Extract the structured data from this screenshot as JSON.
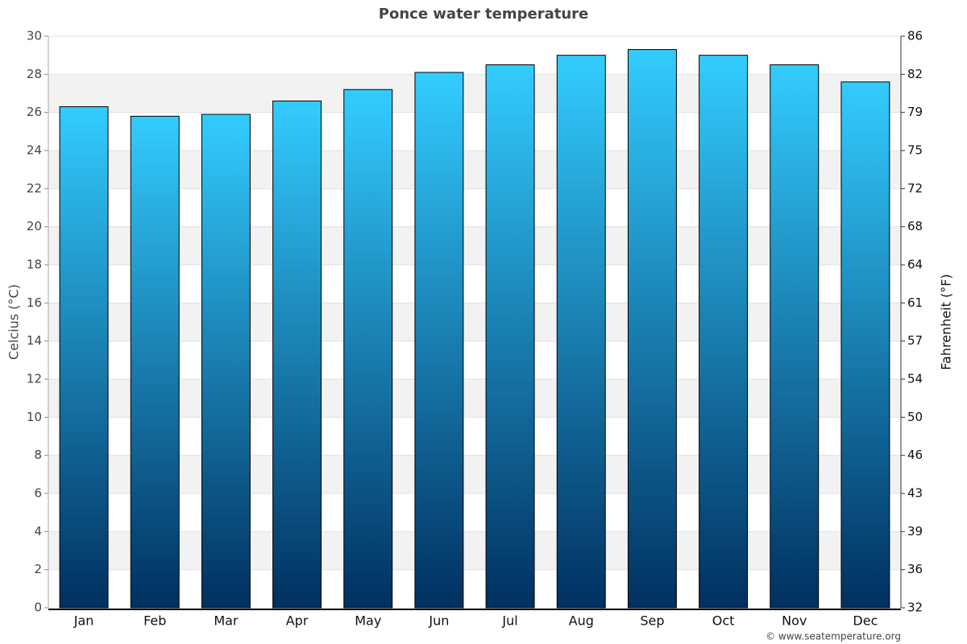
{
  "chart_data": {
    "type": "bar",
    "title": "Ponce water temperature",
    "ylabel": "Celcius (°C)",
    "y2label": "Fahrenheit (°F)",
    "credit": "© www.seatemperature.org",
    "categories": [
      "Jan",
      "Feb",
      "Mar",
      "Apr",
      "May",
      "Jun",
      "Jul",
      "Aug",
      "Sep",
      "Oct",
      "Nov",
      "Dec"
    ],
    "values": [
      26.3,
      25.8,
      25.9,
      26.6,
      27.2,
      28.1,
      28.5,
      29.0,
      29.3,
      29.0,
      28.5,
      27.6
    ],
    "gradient": [
      "#33ccff",
      "#003060"
    ],
    "ylim": [
      0,
      30
    ],
    "yticks": [
      0,
      2,
      4,
      6,
      8,
      10,
      12,
      14,
      16,
      18,
      20,
      22,
      24,
      26,
      28,
      30
    ],
    "y2lim": [
      32,
      86
    ],
    "y2ticks": [
      32,
      {
        "value": 35.6,
        "label": "36"
      },
      {
        "value": 39.2,
        "label": "39"
      },
      {
        "value": 42.8,
        "label": "43"
      },
      {
        "value": 46.4,
        "label": "46"
      },
      50,
      {
        "value": 53.6,
        "label": "54"
      },
      {
        "value": 57.2,
        "label": "57"
      },
      {
        "value": 60.8,
        "label": "61"
      },
      {
        "value": 64.4,
        "label": "64"
      },
      68,
      {
        "value": 71.6,
        "label": "72"
      },
      {
        "value": 75.2,
        "label": "75"
      },
      {
        "value": 78.8,
        "label": "79"
      },
      {
        "value": 82.4,
        "label": "82"
      },
      86
    ],
    "grid": true
  }
}
